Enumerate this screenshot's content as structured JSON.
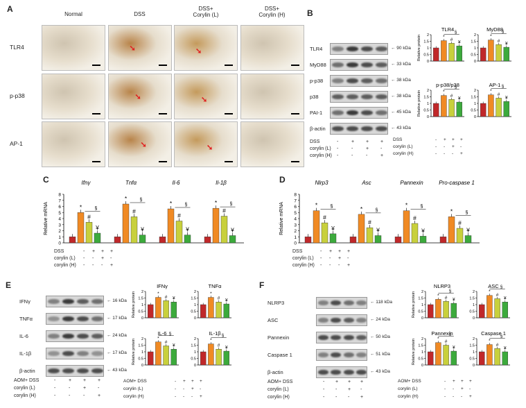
{
  "panels": {
    "A": {
      "letter": "A",
      "columns": [
        "Normal",
        "DSS",
        "DSS+\nCorylin (L)",
        "DSS+\nCorylin (H)"
      ],
      "rows": [
        "TLR4",
        "p-p38",
        "AP-1"
      ]
    },
    "B": {
      "letter": "B",
      "blots": [
        {
          "name": "TLR4",
          "kda": "← 90 kDa"
        },
        {
          "name": "MyD88",
          "kda": "← 33 kDa"
        },
        {
          "name": "p-p38",
          "kda": "← 38 kDa"
        },
        {
          "name": "p38",
          "kda": "← 38 kDa"
        },
        {
          "name": "PAI-1",
          "kda": "← 45 kDa"
        },
        {
          "name": "β-actin",
          "kda": "← 43 kDa"
        }
      ],
      "treat": [
        {
          "label": "DSS",
          "signs": [
            "-",
            "+",
            "+",
            "+"
          ]
        },
        {
          "label": "corylin (L)",
          "signs": [
            "-",
            "-",
            "+",
            "-"
          ]
        },
        {
          "label": "corylin (H)",
          "signs": [
            "-",
            "-",
            "-",
            "+"
          ]
        }
      ]
    },
    "C": {
      "letter": "C",
      "treat": [
        {
          "label": "DSS",
          "signs": [
            "-",
            "+",
            "+",
            "+"
          ]
        },
        {
          "label": "corylin (L)",
          "signs": [
            "-",
            "-",
            "+",
            "-"
          ]
        },
        {
          "label": "corylin (H)",
          "signs": [
            "-",
            "-",
            "-",
            "+"
          ]
        }
      ]
    },
    "D": {
      "letter": "D",
      "treat": [
        {
          "label": "DSS",
          "signs": [
            "-",
            "+",
            "+",
            "+"
          ]
        },
        {
          "label": "corylin (L)",
          "signs": [
            "-",
            "-",
            "+",
            "-"
          ]
        },
        {
          "label": "corylin (H)",
          "signs": [
            "-",
            "-",
            "-",
            "+"
          ]
        }
      ]
    },
    "E": {
      "letter": "E",
      "blots": [
        {
          "name": "IFNγ",
          "kda": "← 16 kDa"
        },
        {
          "name": "TNFα",
          "kda": "← 17 kDa"
        },
        {
          "name": "IL-6",
          "kda": "← 24 kDa"
        },
        {
          "name": "IL-1β",
          "kda": "← 17 kDa"
        },
        {
          "name": "β-actin",
          "kda": "← 43 kDa"
        }
      ],
      "treat": [
        {
          "label": "AOM+ DSS",
          "signs": [
            "-",
            "+",
            "+",
            "+"
          ]
        },
        {
          "label": "corylin (L)",
          "signs": [
            "-",
            "-",
            "+",
            "-"
          ]
        },
        {
          "label": "corylin (H)",
          "signs": [
            "-",
            "-",
            "-",
            "+"
          ]
        }
      ]
    },
    "F": {
      "letter": "F",
      "blots": [
        {
          "name": "NLRP3",
          "kda": "← 118 kDa"
        },
        {
          "name": "ASC",
          "kda": "← 24 kDa"
        },
        {
          "name": "Pannexin",
          "kda": "← 50 kDa"
        },
        {
          "name": "Caspase 1",
          "kda": "← 51 kDa"
        },
        {
          "name": "β-actin",
          "kda": "← 43 kDa"
        }
      ],
      "treat": [
        {
          "label": "AOM+ DSS",
          "signs": [
            "-",
            "+",
            "+",
            "+"
          ]
        },
        {
          "label": "corylin (L)",
          "signs": [
            "-",
            "-",
            "+",
            "-"
          ]
        },
        {
          "label": "corylin (H)",
          "signs": [
            "-",
            "-",
            "-",
            "+"
          ]
        }
      ]
    }
  },
  "colors": {
    "normal": "#c0282a",
    "dss": "#f08a24",
    "low": "#c8d03c",
    "high": "#3caa3c"
  },
  "chart_data": [
    {
      "id": "B-TLR4",
      "type": "bar",
      "title": "TLR4",
      "ylabel": "Relative protein",
      "ylim": [
        0,
        2
      ],
      "yticks": [
        0,
        0.5,
        1,
        1.5,
        2
      ],
      "values": [
        1.0,
        1.55,
        1.35,
        1.15
      ],
      "marks": [
        "",
        "*",
        "#",
        "¥"
      ],
      "bracket": "§"
    },
    {
      "id": "B-MyD88",
      "type": "bar",
      "title": "MyD88",
      "ylabel": "",
      "ylim": [
        0,
        2
      ],
      "yticks": [
        0,
        0.5,
        1,
        1.5,
        2
      ],
      "values": [
        1.0,
        1.6,
        1.25,
        1.05
      ],
      "marks": [
        "",
        "*",
        "#",
        "¥"
      ],
      "bracket": "§"
    },
    {
      "id": "B-pp38",
      "type": "bar",
      "title": "p-p38/p38",
      "ylabel": "Relative protein",
      "ylim": [
        0,
        2
      ],
      "yticks": [
        0,
        0.5,
        1,
        1.5,
        2
      ],
      "values": [
        1.0,
        1.6,
        1.3,
        1.1
      ],
      "marks": [
        "",
        "*",
        "#",
        "¥"
      ],
      "bracket": "§"
    },
    {
      "id": "B-AP1",
      "type": "bar",
      "title": "AP-1",
      "ylabel": "",
      "ylim": [
        0,
        2
      ],
      "yticks": [
        0,
        0.5,
        1,
        1.5,
        2
      ],
      "values": [
        1.0,
        1.65,
        1.4,
        1.15
      ],
      "marks": [
        "",
        "*",
        "#",
        "¥"
      ],
      "bracket": "§"
    },
    {
      "id": "C",
      "type": "bar",
      "ylabel": "Relative mRNA",
      "ylim": [
        0,
        8
      ],
      "yticks": [
        0,
        1,
        2,
        3,
        4,
        5,
        6,
        7,
        8
      ],
      "groups": [
        {
          "name": "Ifnγ",
          "values": [
            1.0,
            5.0,
            3.4,
            1.6
          ],
          "marks": [
            "",
            "*",
            "#",
            "¥"
          ]
        },
        {
          "name": "Tnfα",
          "values": [
            1.0,
            6.4,
            4.3,
            1.3
          ],
          "marks": [
            "",
            "*",
            "#",
            "¥"
          ]
        },
        {
          "name": "Il-6",
          "values": [
            1.0,
            5.6,
            3.6,
            1.3
          ],
          "marks": [
            "",
            "*",
            "#",
            "¥"
          ]
        },
        {
          "name": "Il-1β",
          "values": [
            1.0,
            5.7,
            4.4,
            1.2
          ],
          "marks": [
            "",
            "*",
            "#",
            "¥"
          ]
        }
      ],
      "bracket": "§"
    },
    {
      "id": "D",
      "type": "bar",
      "ylabel": "Relative mRNA",
      "ylim": [
        0,
        8
      ],
      "yticks": [
        0,
        1,
        2,
        3,
        4,
        5,
        6,
        7,
        8
      ],
      "groups": [
        {
          "name": "Nlrp3",
          "values": [
            1.0,
            5.3,
            3.3,
            1.5
          ],
          "marks": [
            "",
            "*",
            "#",
            "¥"
          ]
        },
        {
          "name": "Asc",
          "values": [
            1.0,
            4.7,
            2.5,
            1.2
          ],
          "marks": [
            "",
            "*",
            "#",
            "¥"
          ]
        },
        {
          "name": "Pannexin",
          "values": [
            1.0,
            5.3,
            3.2,
            1.1
          ],
          "marks": [
            "",
            "*",
            "#",
            "¥"
          ]
        },
        {
          "name": "Pro-caspase 1",
          "values": [
            1.0,
            4.3,
            2.4,
            1.2
          ],
          "marks": [
            "",
            "*",
            "#",
            "¥"
          ]
        }
      ],
      "bracket": "§"
    },
    {
      "id": "E-IFNg",
      "type": "bar",
      "title": "IFNγ",
      "ylabel": "Relative protein",
      "ylim": [
        0,
        2
      ],
      "yticks": [
        0,
        0.5,
        1,
        1.5,
        2
      ],
      "values": [
        1.0,
        1.55,
        1.3,
        1.2
      ],
      "marks": [
        "",
        "*",
        "#",
        "¥"
      ],
      "bracket": ""
    },
    {
      "id": "E-TNFa",
      "type": "bar",
      "title": "TNFα",
      "ylabel": "",
      "ylim": [
        0,
        2
      ],
      "yticks": [
        0,
        0.5,
        1,
        1.5,
        2
      ],
      "values": [
        1.0,
        1.55,
        1.2,
        1.05
      ],
      "marks": [
        "",
        "*",
        "#",
        "¥"
      ],
      "bracket": ""
    },
    {
      "id": "E-IL6",
      "type": "bar",
      "title": "IL-6",
      "ylabel": "Relative protein",
      "ylim": [
        0,
        2
      ],
      "yticks": [
        0,
        0.5,
        1,
        1.5,
        2
      ],
      "values": [
        1.0,
        1.75,
        1.45,
        1.2
      ],
      "marks": [
        "",
        "*",
        "#",
        "¥"
      ],
      "bracket": "§"
    },
    {
      "id": "E-IL1b",
      "type": "bar",
      "title": "IL-1β",
      "ylabel": "",
      "ylim": [
        0,
        2
      ],
      "yticks": [
        0,
        0.5,
        1,
        1.5,
        2
      ],
      "values": [
        1.0,
        1.6,
        1.2,
        1.05
      ],
      "marks": [
        "",
        "*",
        "#",
        "¥"
      ],
      "bracket": "§"
    },
    {
      "id": "F-NLRP3",
      "type": "bar",
      "title": "NLRP3",
      "ylabel": "Relative protein",
      "ylim": [
        0,
        2
      ],
      "yticks": [
        0,
        0.5,
        1,
        1.5,
        2
      ],
      "values": [
        1.0,
        1.4,
        1.25,
        1.1
      ],
      "marks": [
        "",
        "*",
        "#",
        "¥"
      ],
      "bracket": "§"
    },
    {
      "id": "F-ASC",
      "type": "bar",
      "title": "ASC",
      "ylabel": "",
      "ylim": [
        0,
        2
      ],
      "yticks": [
        0,
        0.5,
        1,
        1.5,
        2
      ],
      "values": [
        1.0,
        1.7,
        1.45,
        1.2
      ],
      "marks": [
        "",
        "*",
        "#",
        "¥"
      ],
      "bracket": "§"
    },
    {
      "id": "F-Pannexin",
      "type": "bar",
      "title": "Pannexin",
      "ylabel": "Relative protein",
      "ylim": [
        0,
        2
      ],
      "yticks": [
        0,
        0.5,
        1,
        1.5,
        2
      ],
      "values": [
        1.0,
        1.7,
        1.5,
        1.05
      ],
      "marks": [
        "",
        "*",
        "#",
        "¥"
      ],
      "bracket": "§"
    },
    {
      "id": "F-Casp1",
      "type": "bar",
      "title": "Caspase 1",
      "ylabel": "",
      "ylim": [
        0,
        2
      ],
      "yticks": [
        0,
        0.5,
        1,
        1.5,
        2
      ],
      "values": [
        1.0,
        1.55,
        1.25,
        1.0
      ],
      "marks": [
        "",
        "*",
        "#",
        "¥"
      ],
      "bracket": "§"
    }
  ]
}
